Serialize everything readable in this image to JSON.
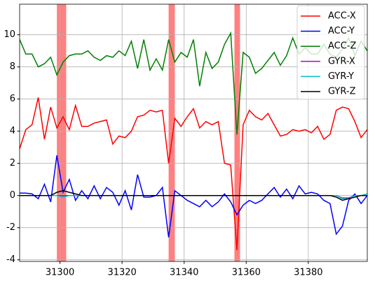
{
  "chart_data": {
    "type": "line",
    "x": [
      31287,
      31289,
      31291,
      31293,
      31295,
      31297,
      31299,
      31301,
      31303,
      31305,
      31307,
      31309,
      31311,
      31313,
      31315,
      31317,
      31319,
      31321,
      31323,
      31325,
      31327,
      31329,
      31331,
      31333,
      31335,
      31337,
      31339,
      31341,
      31343,
      31345,
      31347,
      31349,
      31351,
      31353,
      31355,
      31357,
      31359,
      31361,
      31363,
      31365,
      31367,
      31369,
      31371,
      31373,
      31375,
      31377,
      31379,
      31381,
      31383,
      31385,
      31387,
      31389,
      31391,
      31393,
      31395,
      31397,
      31399
    ],
    "series": [
      {
        "name": "ACC-X",
        "color": "#ff0000",
        "values": [
          2.9,
          4.1,
          4.4,
          6.1,
          3.5,
          5.5,
          4.2,
          4.9,
          4.1,
          5.6,
          4.3,
          4.3,
          4.5,
          4.6,
          4.7,
          3.2,
          3.7,
          3.6,
          4.0,
          4.9,
          5.0,
          5.3,
          5.2,
          5.3,
          2.0,
          4.8,
          4.3,
          4.9,
          5.4,
          4.2,
          4.6,
          4.4,
          4.6,
          2.0,
          1.9,
          -3.4,
          4.4,
          5.3,
          4.9,
          4.7,
          5.1,
          4.4,
          3.7,
          3.8,
          4.1,
          4.0,
          4.1,
          3.9,
          4.3,
          3.5,
          3.8,
          5.3,
          5.5,
          5.4,
          4.6,
          3.6,
          4.1
        ]
      },
      {
        "name": "ACC-Y",
        "color": "#0000ff",
        "values": [
          0.15,
          0.15,
          0.1,
          -0.2,
          0.7,
          -0.4,
          2.5,
          0.2,
          1.0,
          -0.3,
          0.3,
          -0.2,
          0.6,
          -0.2,
          0.5,
          0.2,
          -0.6,
          0.3,
          -0.9,
          1.3,
          -0.1,
          -0.1,
          0.0,
          0.5,
          -2.6,
          0.3,
          0.0,
          -0.3,
          -0.5,
          -0.7,
          -0.3,
          -0.7,
          -0.4,
          0.1,
          -0.4,
          -1.2,
          -0.6,
          -0.3,
          -0.5,
          -0.3,
          0.1,
          0.5,
          -0.1,
          0.4,
          -0.2,
          0.6,
          0.1,
          0.2,
          0.1,
          -0.3,
          -0.5,
          -2.4,
          -1.9,
          -0.3,
          0.1,
          -0.5,
          0.0
        ]
      },
      {
        "name": "ACC-Z",
        "color": "#008000",
        "values": [
          9.7,
          8.8,
          8.8,
          8.0,
          8.2,
          8.6,
          7.5,
          8.3,
          8.7,
          8.8,
          8.8,
          9.0,
          8.6,
          8.4,
          8.7,
          8.6,
          9.0,
          8.7,
          9.6,
          7.9,
          9.7,
          7.8,
          8.5,
          7.8,
          9.7,
          8.3,
          8.9,
          8.6,
          9.7,
          6.8,
          8.9,
          7.9,
          8.3,
          9.4,
          10.1,
          3.8,
          8.9,
          8.6,
          7.6,
          7.9,
          8.4,
          8.9,
          8.1,
          8.7,
          9.8,
          8.8,
          9.2,
          8.8,
          8.8,
          9.4,
          8.8,
          8.6,
          9.1,
          9.8,
          8.7,
          9.6,
          9.0
        ]
      },
      {
        "name": "GYR-X",
        "color": "#bf00bf",
        "values": [
          0,
          0,
          0,
          0,
          0,
          0,
          0,
          0,
          0,
          0,
          0,
          0,
          0,
          0,
          0,
          0,
          0,
          0,
          0,
          0,
          0,
          0,
          0,
          0,
          0,
          0,
          0,
          0,
          0,
          0,
          0,
          0,
          0,
          0,
          0,
          0,
          0,
          0,
          0,
          0,
          0,
          0,
          0,
          0,
          0,
          0,
          0,
          0,
          0,
          0,
          0,
          0,
          -0.15,
          -0.15,
          0,
          0,
          0
        ]
      },
      {
        "name": "GYR-Y",
        "color": "#00bfbf",
        "values": [
          0,
          0,
          0,
          0,
          0,
          0,
          0,
          -0.1,
          0,
          0,
          0,
          0,
          0,
          0,
          0,
          0,
          0,
          0,
          0,
          0,
          0,
          0,
          0,
          0,
          0,
          0,
          0,
          0,
          0,
          0,
          0,
          0,
          0,
          0,
          0,
          0,
          0,
          0,
          0,
          0,
          0,
          0,
          0,
          0,
          0,
          0,
          0,
          0,
          0,
          0,
          0,
          0,
          -0.2,
          -0.2,
          0,
          0,
          0.1
        ]
      },
      {
        "name": "GYR-Z",
        "color": "#000000",
        "values": [
          0,
          0,
          0,
          0,
          0,
          0,
          0.2,
          0.3,
          0.2,
          0.1,
          0,
          0,
          0,
          0,
          0,
          0,
          0,
          0,
          0,
          0,
          0,
          0,
          0,
          0,
          0,
          0,
          0,
          0,
          0,
          0,
          0,
          0,
          0,
          0,
          0,
          0,
          0,
          0,
          0,
          0,
          0,
          0,
          0,
          0,
          0,
          0,
          0,
          0,
          0,
          0,
          0,
          -0.1,
          -0.3,
          -0.2,
          -0.1,
          0,
          0
        ]
      }
    ],
    "spans": [
      [
        31299,
        31302
      ],
      [
        31335,
        31337
      ],
      [
        31356.2,
        31358
      ]
    ],
    "span_color": "#ff8080",
    "xlim": [
      31287,
      31399
    ],
    "ylim": [
      -4.1,
      11.9
    ],
    "xticks": [
      31300,
      31320,
      31340,
      31360,
      31380
    ],
    "yticks": [
      -4,
      -2,
      0,
      2,
      4,
      6,
      8,
      10
    ],
    "grid": true,
    "legend": "upper right"
  }
}
